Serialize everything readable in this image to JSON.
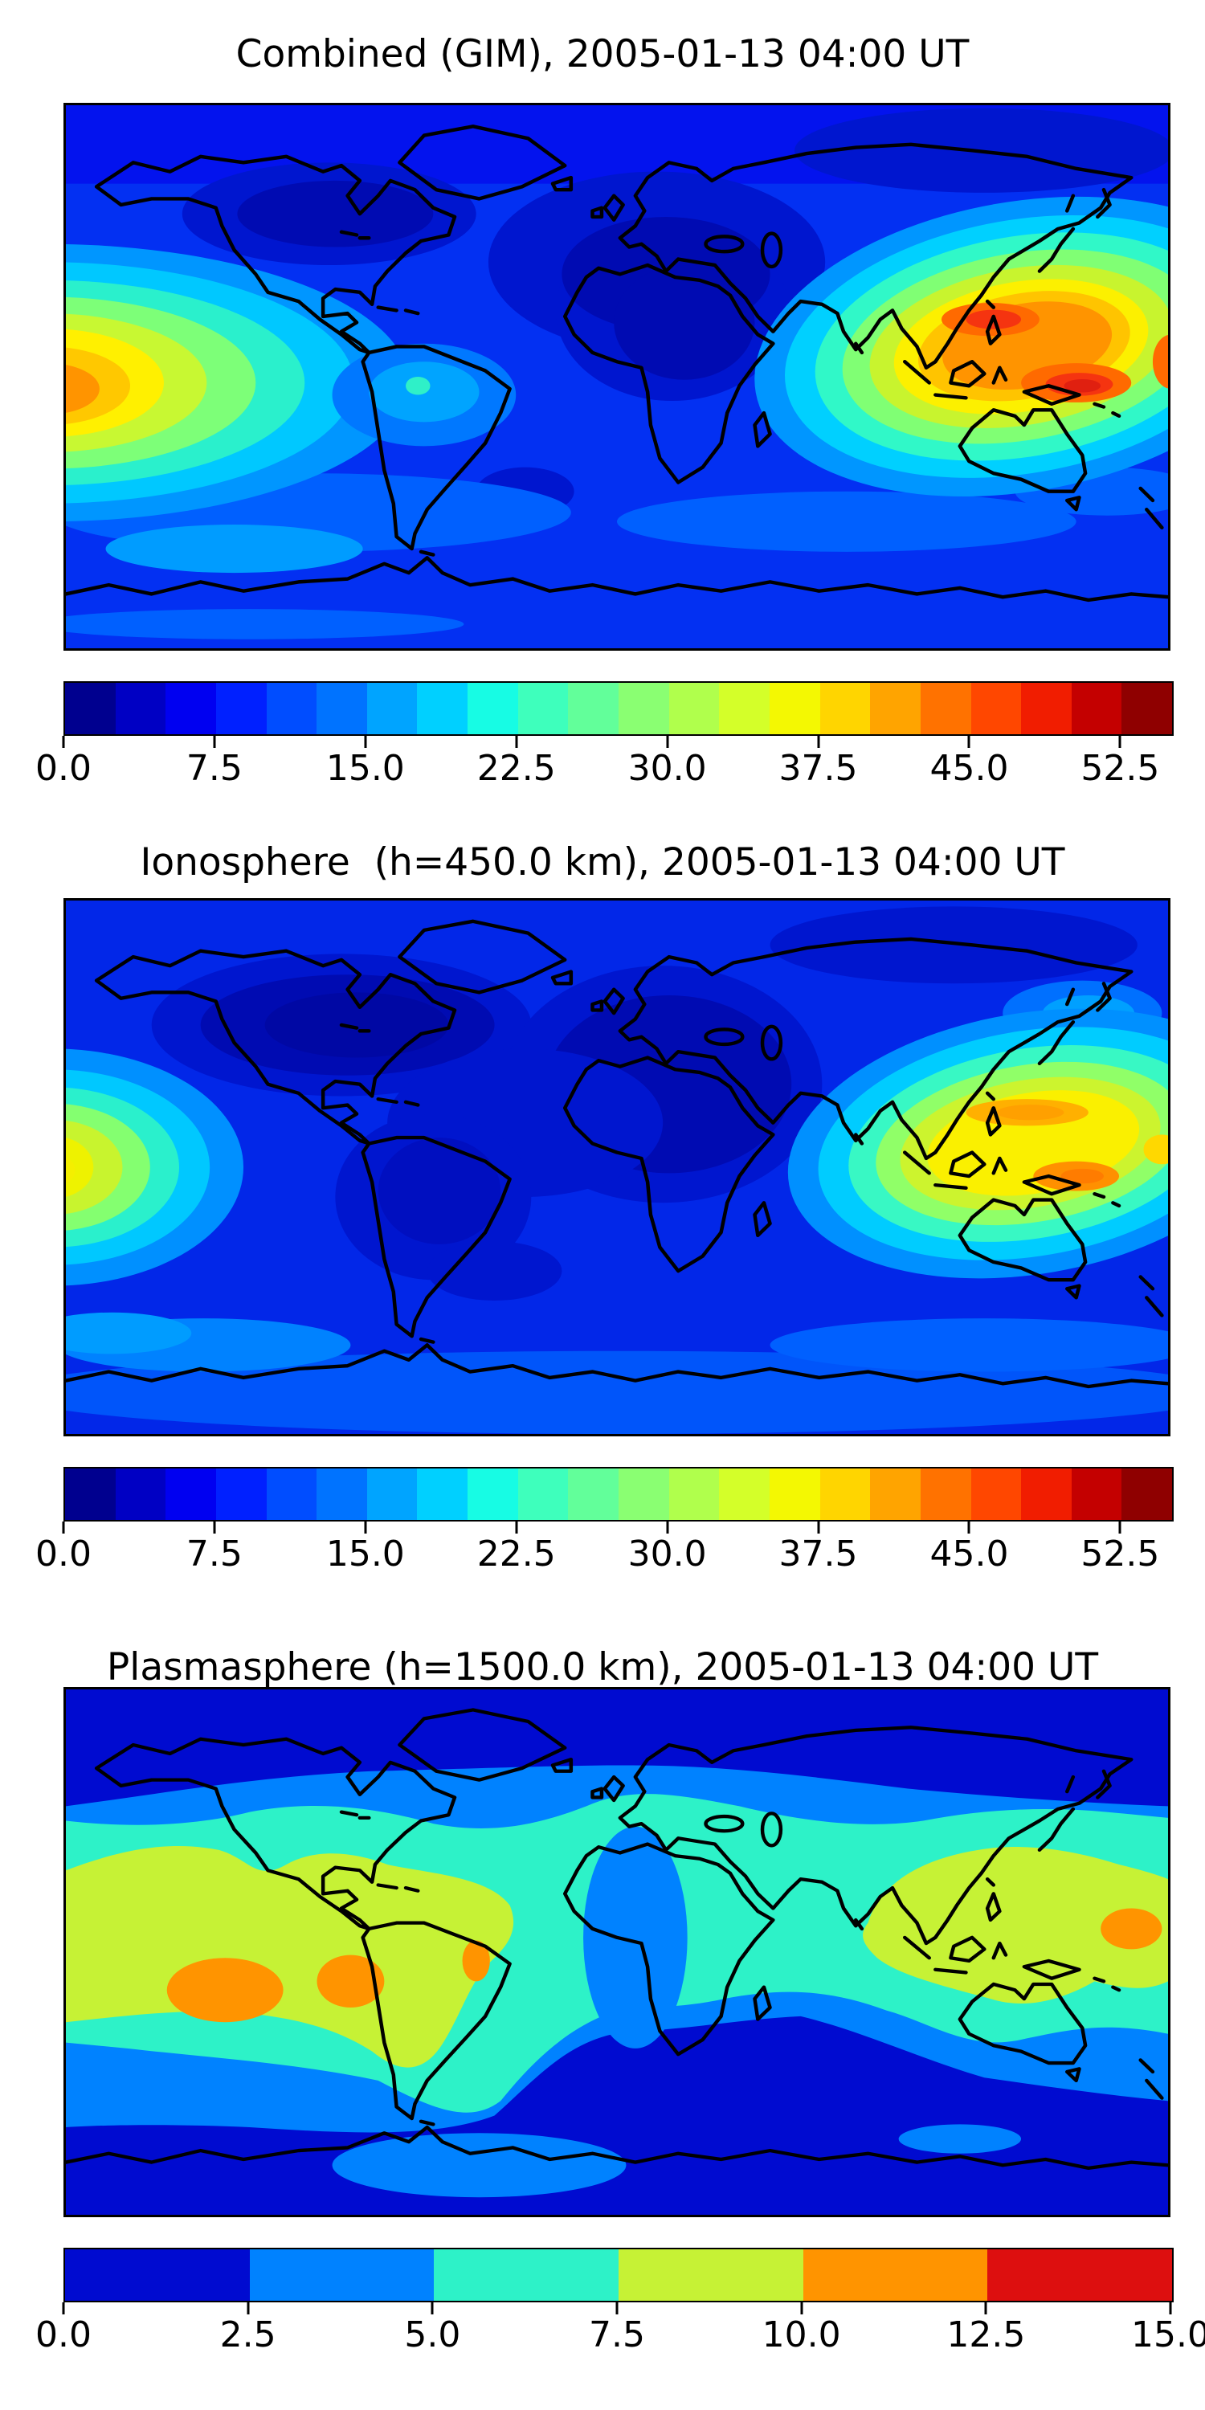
{
  "figure": {
    "background": "#ffffff",
    "timestamp_shown": "2005-01-13 04:00 UT"
  },
  "panels": [
    {
      "title": "Combined (GIM), 2005-01-13 04:00 UT",
      "colorbar": {
        "vmin": 0,
        "vmax": 55,
        "level_step": 2.5,
        "n_segments": 22,
        "ticks": [
          0,
          7.5,
          15,
          22.5,
          30,
          37.5,
          45,
          52.5
        ],
        "tick_labels": [
          "0.0",
          "7.5",
          "15.0",
          "22.5",
          "30.0",
          "37.5",
          "45.0",
          "52.5"
        ],
        "colors": [
          "#00008f",
          "#0000c4",
          "#0000f1",
          "#0020ff",
          "#004dff",
          "#0073ff",
          "#00a4ff",
          "#00d0ff",
          "#17fce4",
          "#3effbc",
          "#62ff9a",
          "#8aff72",
          "#b0ff4c",
          "#d4ff29",
          "#f4f802",
          "#ffd500",
          "#ffa400",
          "#ff7200",
          "#ff4700",
          "#f11d00",
          "#c40000",
          "#8f0000"
        ]
      }
    },
    {
      "title": "Ionosphere  (h=450.0 km), 2005-01-13 04:00 UT",
      "colorbar": {
        "vmin": 0,
        "vmax": 55,
        "level_step": 2.5,
        "n_segments": 22,
        "ticks": [
          0,
          7.5,
          15,
          22.5,
          30,
          37.5,
          45,
          52.5
        ],
        "tick_labels": [
          "0.0",
          "7.5",
          "15.0",
          "22.5",
          "30.0",
          "37.5",
          "45.0",
          "52.5"
        ],
        "colors": [
          "#00008f",
          "#0000c4",
          "#0000f1",
          "#0020ff",
          "#004dff",
          "#0073ff",
          "#00a4ff",
          "#00d0ff",
          "#17fce4",
          "#3effbc",
          "#62ff9a",
          "#8aff72",
          "#b0ff4c",
          "#d4ff29",
          "#f4f802",
          "#ffd500",
          "#ffa400",
          "#ff7200",
          "#ff4700",
          "#f11d00",
          "#c40000",
          "#8f0000"
        ]
      }
    },
    {
      "title": "Plasmasphere (h=1500.0 km), 2005-01-13 04:00 UT",
      "colorbar": {
        "vmin": 0,
        "vmax": 15,
        "level_step": 2.5,
        "n_segments": 6,
        "ticks": [
          0,
          2.5,
          5,
          7.5,
          10,
          12.5,
          15
        ],
        "tick_labels": [
          "0.0",
          "2.5",
          "5.0",
          "7.5",
          "10.0",
          "12.5",
          "15.0"
        ],
        "colors": [
          "#000bd0",
          "#0082ff",
          "#2df2c8",
          "#c6f235",
          "#ff9400",
          "#dd0f0f"
        ]
      }
    }
  ],
  "chart_data": [
    {
      "type": "heatmap",
      "subtype": "filled_contour_world_map",
      "title": "Combined (GIM), 2005-01-13 04:00 UT",
      "projection": "equirectangular",
      "lon_range": [
        -180,
        180
      ],
      "lat_range": [
        -90,
        90
      ],
      "colormap": "jet",
      "value_range": [
        0,
        55
      ],
      "contour_step": 2.5,
      "features": [
        {
          "name": "primary maximum",
          "approx_lon": 125,
          "approx_lat": 18,
          "approx_value": 50
        },
        {
          "name": "primary maximum south crest",
          "approx_lon": 152,
          "approx_lat": -3,
          "approx_value": 52
        },
        {
          "name": "secondary maximum at west edge (Pacific)",
          "approx_lon": -178,
          "approx_lat": -2,
          "approx_value": 42
        },
        {
          "name": "minimum over North America",
          "approx_lon": -90,
          "approx_lat": 54,
          "approx_value": 3
        },
        {
          "name": "minimum over Europe / North Africa / Atlantic",
          "approx_lon": 15,
          "approx_lat": 25,
          "approx_value": 4
        },
        {
          "name": "background mid-latitude level",
          "approx_value": 10
        }
      ]
    },
    {
      "type": "heatmap",
      "subtype": "filled_contour_world_map",
      "title": "Ionosphere  (h=450.0 km), 2005-01-13 04:00 UT",
      "projection": "equirectangular",
      "lon_range": [
        -180,
        180
      ],
      "lat_range": [
        -90,
        90
      ],
      "colormap": "jet",
      "value_range": [
        0,
        55
      ],
      "contour_step": 2.5,
      "features": [
        {
          "name": "maximum near New Guinea",
          "approx_lon": 150,
          "approx_lat": -4,
          "approx_value": 38
        },
        {
          "name": "maximum east of Philippines",
          "approx_lon": 135,
          "approx_lat": 17,
          "approx_value": 35
        },
        {
          "name": "secondary maximum at west edge (Pacific)",
          "approx_lon": -178,
          "approx_lat": 0,
          "approx_value": 30
        },
        {
          "name": "broad minimum over Americas / Atlantic / Africa / Europe",
          "approx_value": 3
        },
        {
          "name": "southern high-latitude band",
          "approx_value": 8
        }
      ]
    },
    {
      "type": "heatmap",
      "subtype": "filled_contour_world_map",
      "title": "Plasmasphere (h=1500.0 km), 2005-01-13 04:00 UT",
      "projection": "equirectangular",
      "lon_range": [
        -180,
        180
      ],
      "lat_range": [
        -90,
        90
      ],
      "colormap": "jet",
      "value_range": [
        0,
        15
      ],
      "contour_step": 2.5,
      "features": [
        {
          "name": "orange cell SE Pacific",
          "approx_lon": -128,
          "approx_lat": -13,
          "approx_value": 11
        },
        {
          "name": "orange cell west of Peru",
          "approx_lon": -87,
          "approx_lat": -10,
          "approx_value": 11
        },
        {
          "name": "small orange cell east of Brazil",
          "approx_lon": -46,
          "approx_lat": -3,
          "approx_value": 11
        },
        {
          "name": "orange cell west Pacific (east edge)",
          "approx_lon": 168,
          "approx_lat": 8,
          "approx_value": 11
        },
        {
          "name": "equatorial yellow-green band",
          "approx_value": 8.5
        },
        {
          "name": "mid-latitude turquoise band",
          "approx_value": 6
        },
        {
          "name": "polar dark-blue caps",
          "approx_value": 1.5
        }
      ]
    }
  ]
}
